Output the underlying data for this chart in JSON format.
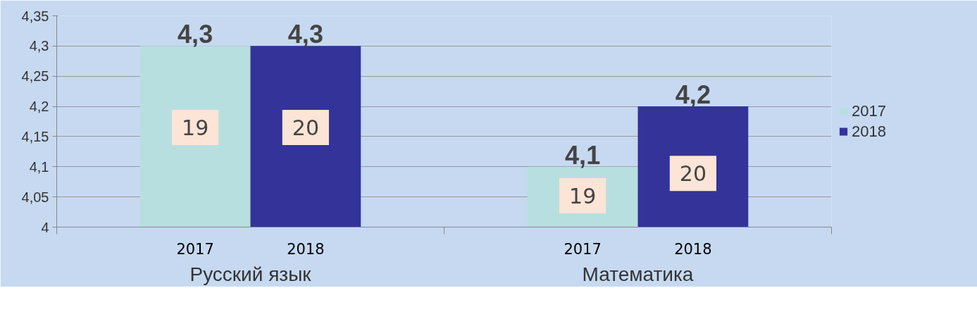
{
  "chart_data": {
    "type": "bar",
    "categories": [
      "Русский язык",
      "Математика"
    ],
    "series": [
      {
        "name": "2017",
        "color": "#b8dfe0",
        "values": [
          4.3,
          4.1
        ],
        "value_labels": [
          "4,3",
          "4,1"
        ]
      },
      {
        "name": "2018",
        "color": "#333399",
        "values": [
          4.3,
          4.2
        ],
        "value_labels": [
          "4,3",
          "4,2"
        ]
      }
    ],
    "ylim": [
      4,
      4.35
    ],
    "yticks": [
      {
        "value": 4,
        "label": "4"
      },
      {
        "value": 4.05,
        "label": "4,05"
      },
      {
        "value": 4.1,
        "label": "4,1"
      },
      {
        "value": 4.15,
        "label": "4,15"
      },
      {
        "value": 4.2,
        "label": "4,2"
      },
      {
        "value": 4.25,
        "label": "4,25"
      },
      {
        "value": 4.3,
        "label": "4,3"
      },
      {
        "value": 4.35,
        "label": "4,35"
      }
    ],
    "annotations": [
      {
        "text": "19",
        "x": "Русский язык",
        "y": 4.165
      },
      {
        "text": "20",
        "x": "Русский язык",
        "y": 4.165
      },
      {
        "text": "19",
        "x": "Математика",
        "y": 4.052
      },
      {
        "text": "20",
        "x": "Математика",
        "y": 4.089
      }
    ],
    "grid": "y",
    "legend": "right"
  }
}
